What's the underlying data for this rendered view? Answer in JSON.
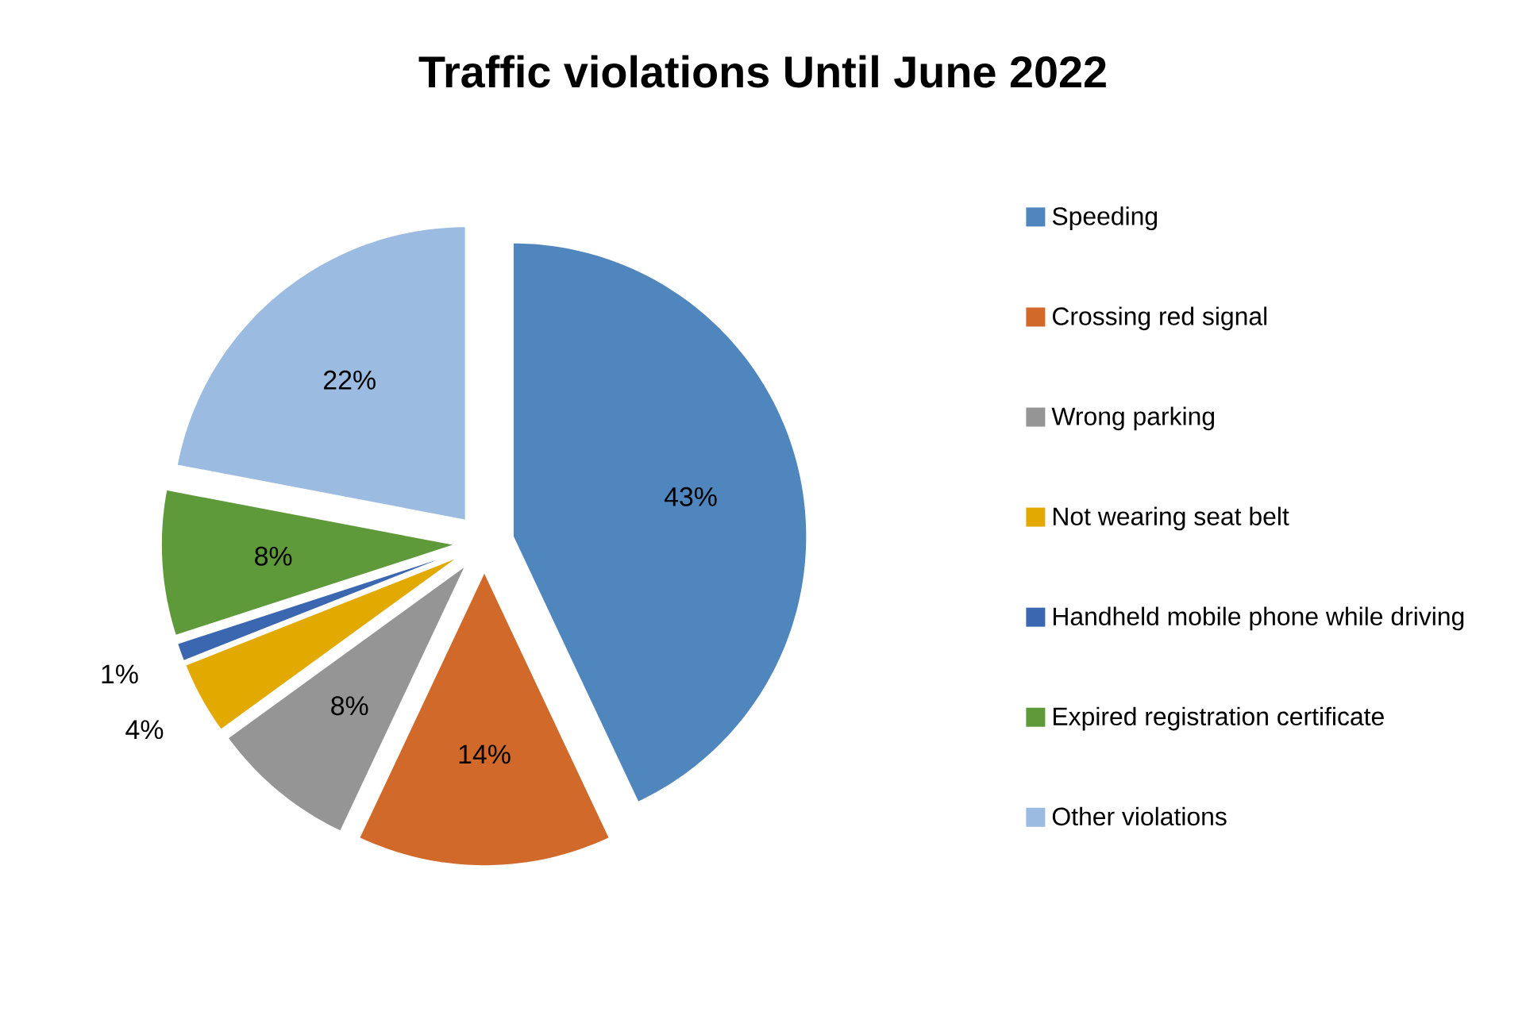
{
  "chart_data": {
    "type": "pie",
    "title": "Traffic violations Until June 2022",
    "categories": [
      "Speeding",
      "Crossing red signal",
      "Wrong parking",
      "Not wearing seat belt",
      "Handheld mobile phone while driving",
      "Expired registration certificate",
      "Other violations"
    ],
    "values": [
      43,
      14,
      8,
      4,
      1,
      8,
      22
    ],
    "colors": [
      "#4f86bd",
      "#d0692a",
      "#959595",
      "#e2a900",
      "#3b66b0",
      "#5e9a3a",
      "#9bbbe0"
    ],
    "value_labels": [
      "43%",
      "14%",
      "8%",
      "4%",
      "1%",
      "8%",
      "22%"
    ],
    "legend": "right"
  }
}
